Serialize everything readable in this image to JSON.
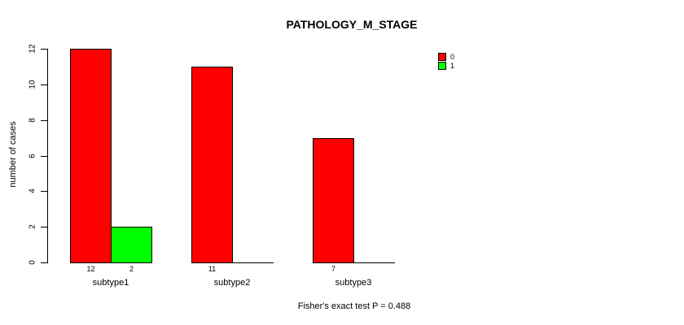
{
  "chart_data": {
    "type": "bar",
    "title": "PATHOLOGY_M_STAGE",
    "ylabel": "number of cases",
    "xlabel": "",
    "categories": [
      "subtype1",
      "subtype2",
      "subtype3"
    ],
    "series": [
      {
        "name": "0",
        "color": "#ff0000",
        "values": [
          12,
          11,
          7
        ]
      },
      {
        "name": "1",
        "color": "#00ff00",
        "values": [
          2,
          0,
          0
        ]
      }
    ],
    "bar_value_labels": [
      [
        "12",
        "2"
      ],
      [
        "11",
        ""
      ],
      [
        "7",
        ""
      ]
    ],
    "ylim": [
      0,
      12
    ],
    "yticks": [
      0,
      2,
      4,
      6,
      8,
      10,
      12
    ],
    "grid": false,
    "legend_position": "top-right",
    "annotation": "Fisher's exact test P = 0.488",
    "background_color": "#ffffff",
    "axis_color": "#000000"
  }
}
